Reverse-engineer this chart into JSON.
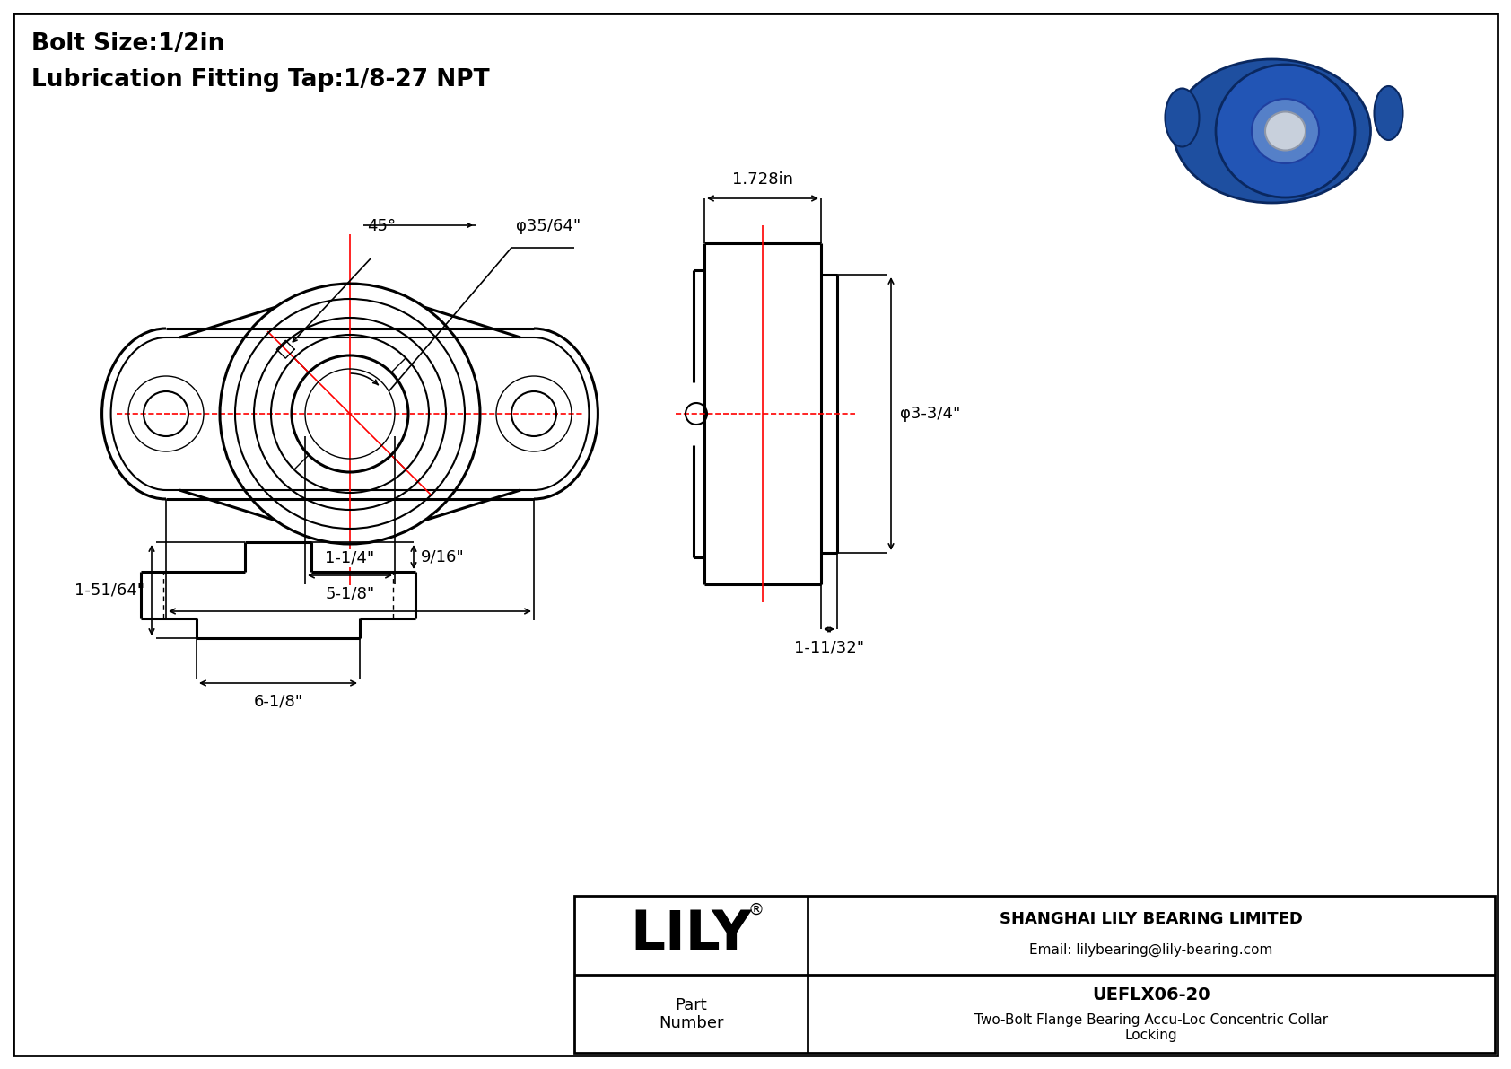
{
  "bg_color": "#ffffff",
  "line_color": "#000000",
  "red_color": "#ff0000",
  "header_text1": "Bolt Size:1/2in",
  "header_text2": "Lubrication Fitting Tap:1/8-27 NPT",
  "dim_fontsize": 13,
  "annot_fontsize": 13,
  "company_name": "SHANGHAI LILY BEARING LIMITED",
  "company_email": "Email: lilybearing@lily-bearing.com",
  "part_label": "Part\nNumber",
  "part_number": "UEFLX06-20",
  "part_desc": "Two-Bolt Flange Bearing Accu-Loc Concentric Collar\nLocking",
  "lily_text": "LILY",
  "dim_bolt_circle": "φ35/64\"",
  "dim_angle": "45°",
  "dim_width_inner": "1-1/4\"",
  "dim_width_total": "5-1/8\"",
  "dim_side_width": "1.728in",
  "dim_side_diam": "φ3-3/4\"",
  "dim_side_depth": "1-11/32\"",
  "dim_front_height": "1-51/64\"",
  "dim_front_top": "9/16\"",
  "dim_front_total": "6-1/8\""
}
